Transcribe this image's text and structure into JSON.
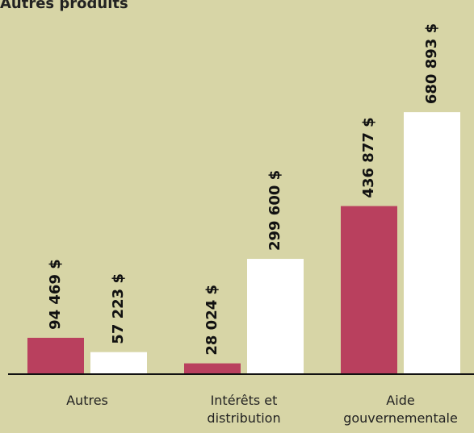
{
  "chart_data": {
    "type": "bar",
    "title": "Autres produits",
    "categories": [
      "Autres",
      "Intérêts et distribution",
      "Aide gouvernementale"
    ],
    "series": [
      {
        "color": "#b9405e",
        "values": [
          94469,
          28024,
          436877
        ],
        "value_labels": [
          "94 469 $",
          "28 024 $",
          "436 877 $"
        ]
      },
      {
        "color": "#ffffff",
        "values": [
          57223,
          299600,
          680893
        ],
        "value_labels": [
          "57 223 $",
          "299 600 $",
          "680 893 $"
        ]
      }
    ],
    "ylim": [
      0,
      700000
    ]
  }
}
